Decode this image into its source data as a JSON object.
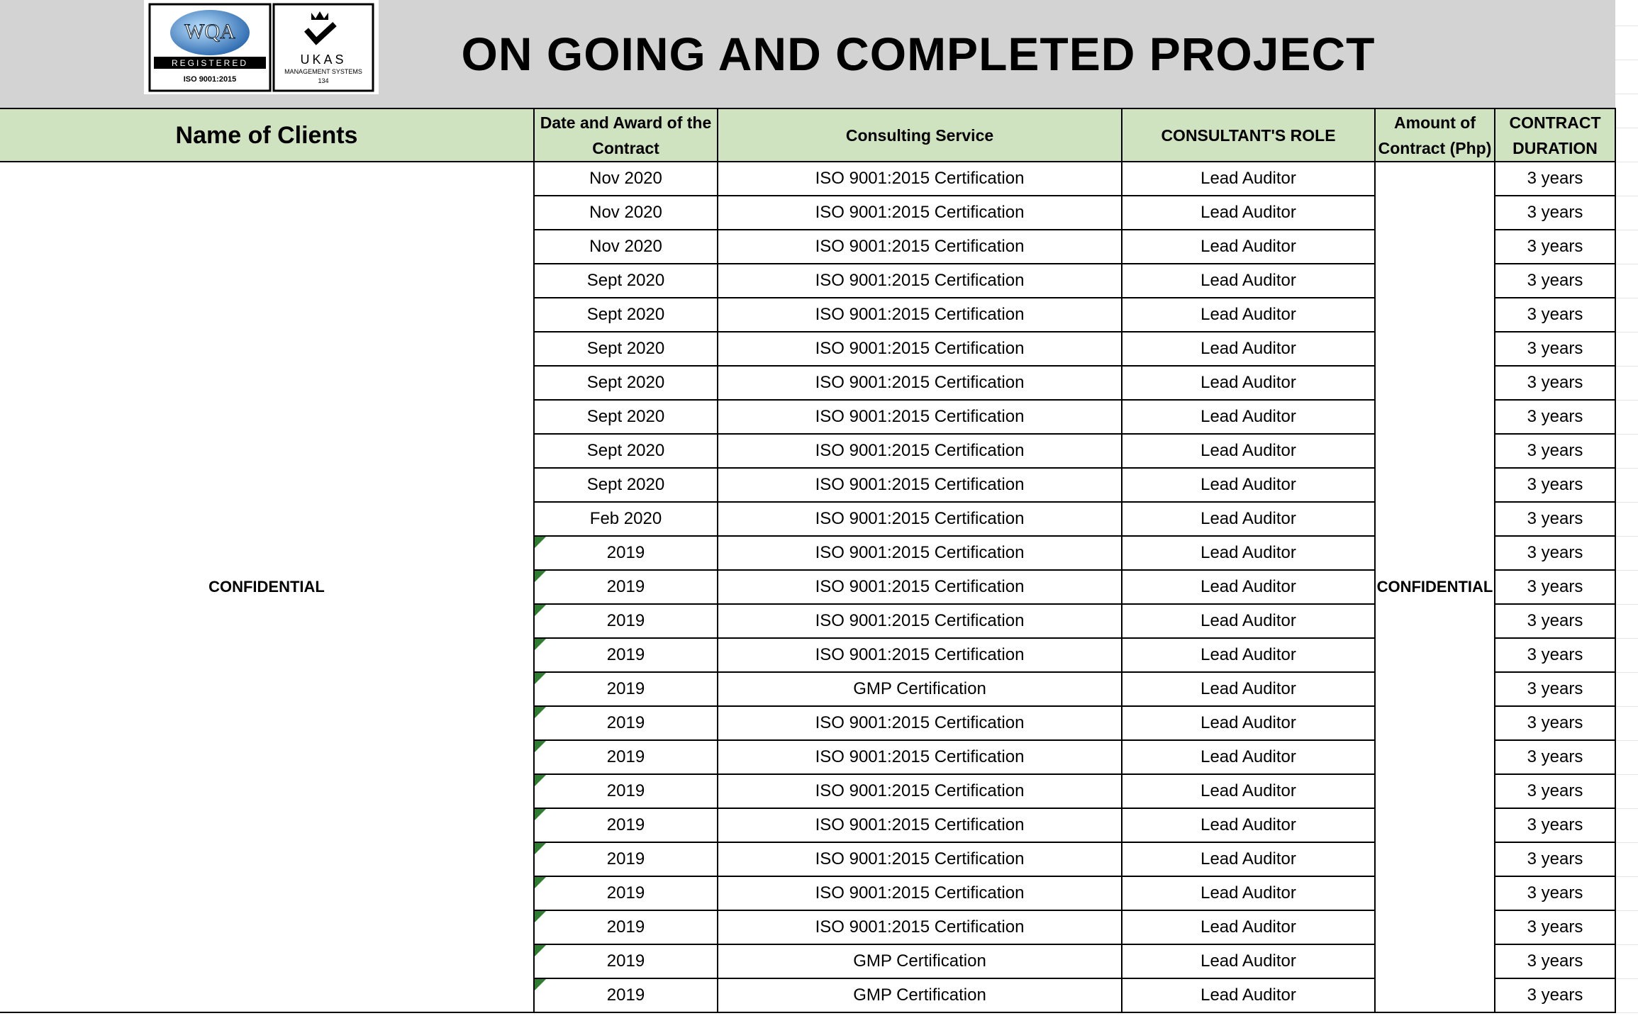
{
  "header": {
    "title": "ON GOING AND COMPLETED PROJECT",
    "logo": {
      "wqa": "WQA",
      "registered": "REGISTERED",
      "standard": "ISO 9001:2015",
      "ukas": "UKAS",
      "ukas_sub": "MANAGEMENT SYSTEMS",
      "ukas_number": "134"
    }
  },
  "table": {
    "columns": [
      "Name of Clients",
      "Date and Award of the Contract",
      "Consulting Service",
      "CONSULTANT'S ROLE",
      "Amount of Contract (Php)",
      "CONTRACT DURATION"
    ],
    "client_name": "CONFIDENTIAL",
    "amount": "CONFIDENTIAL",
    "rows": [
      [
        "Nov 2020",
        "ISO 9001:2015 Certification",
        "Lead Auditor",
        "3 years"
      ],
      [
        "Nov 2020",
        "ISO 9001:2015 Certification",
        "Lead Auditor",
        "3 years"
      ],
      [
        "Nov 2020",
        "ISO 9001:2015 Certification",
        "Lead Auditor",
        "3 years"
      ],
      [
        "Sept 2020",
        "ISO 9001:2015 Certification",
        "Lead Auditor",
        "3 years"
      ],
      [
        "Sept 2020",
        "ISO 9001:2015 Certification",
        "Lead Auditor",
        "3 years"
      ],
      [
        "Sept 2020",
        "ISO 9001:2015 Certification",
        "Lead Auditor",
        "3 years"
      ],
      [
        "Sept 2020",
        "ISO 9001:2015 Certification",
        "Lead Auditor",
        "3 years"
      ],
      [
        "Sept 2020",
        "ISO 9001:2015 Certification",
        "Lead Auditor",
        "3 years"
      ],
      [
        "Sept 2020",
        "ISO 9001:2015 Certification",
        "Lead Auditor",
        "3 years"
      ],
      [
        "Sept 2020",
        "ISO 9001:2015 Certification",
        "Lead Auditor",
        "3 years"
      ],
      [
        "Feb 2020",
        "ISO 9001:2015 Certification",
        "Lead Auditor",
        "3 years"
      ],
      [
        "2019",
        "ISO 9001:2015 Certification",
        "Lead Auditor",
        "3 years"
      ],
      [
        "2019",
        "ISO 9001:2015 Certification",
        "Lead Auditor",
        "3 years"
      ],
      [
        "2019",
        "ISO 9001:2015 Certification",
        "Lead Auditor",
        "3 years"
      ],
      [
        "2019",
        "ISO 9001:2015 Certification",
        "Lead Auditor",
        "3 years"
      ],
      [
        "2019",
        "GMP Certification",
        "Lead Auditor",
        "3 years"
      ],
      [
        "2019",
        "ISO 9001:2015 Certification",
        "Lead Auditor",
        "3 years"
      ],
      [
        "2019",
        "ISO 9001:2015 Certification",
        "Lead Auditor",
        "3 years"
      ],
      [
        "2019",
        "ISO 9001:2015 Certification",
        "Lead Auditor",
        "3 years"
      ],
      [
        "2019",
        "ISO 9001:2015 Certification",
        "Lead Auditor",
        "3 years"
      ],
      [
        "2019",
        "ISO 9001:2015 Certification",
        "Lead Auditor",
        "3 years"
      ],
      [
        "2019",
        "ISO 9001:2015 Certification",
        "Lead Auditor",
        "3 years"
      ],
      [
        "2019",
        "ISO 9001:2015 Certification",
        "Lead Auditor",
        "3 years"
      ],
      [
        "2019",
        "GMP Certification",
        "Lead Auditor",
        "3 years"
      ],
      [
        "2019",
        "GMP Certification",
        "Lead Auditor",
        "3 years"
      ]
    ]
  }
}
